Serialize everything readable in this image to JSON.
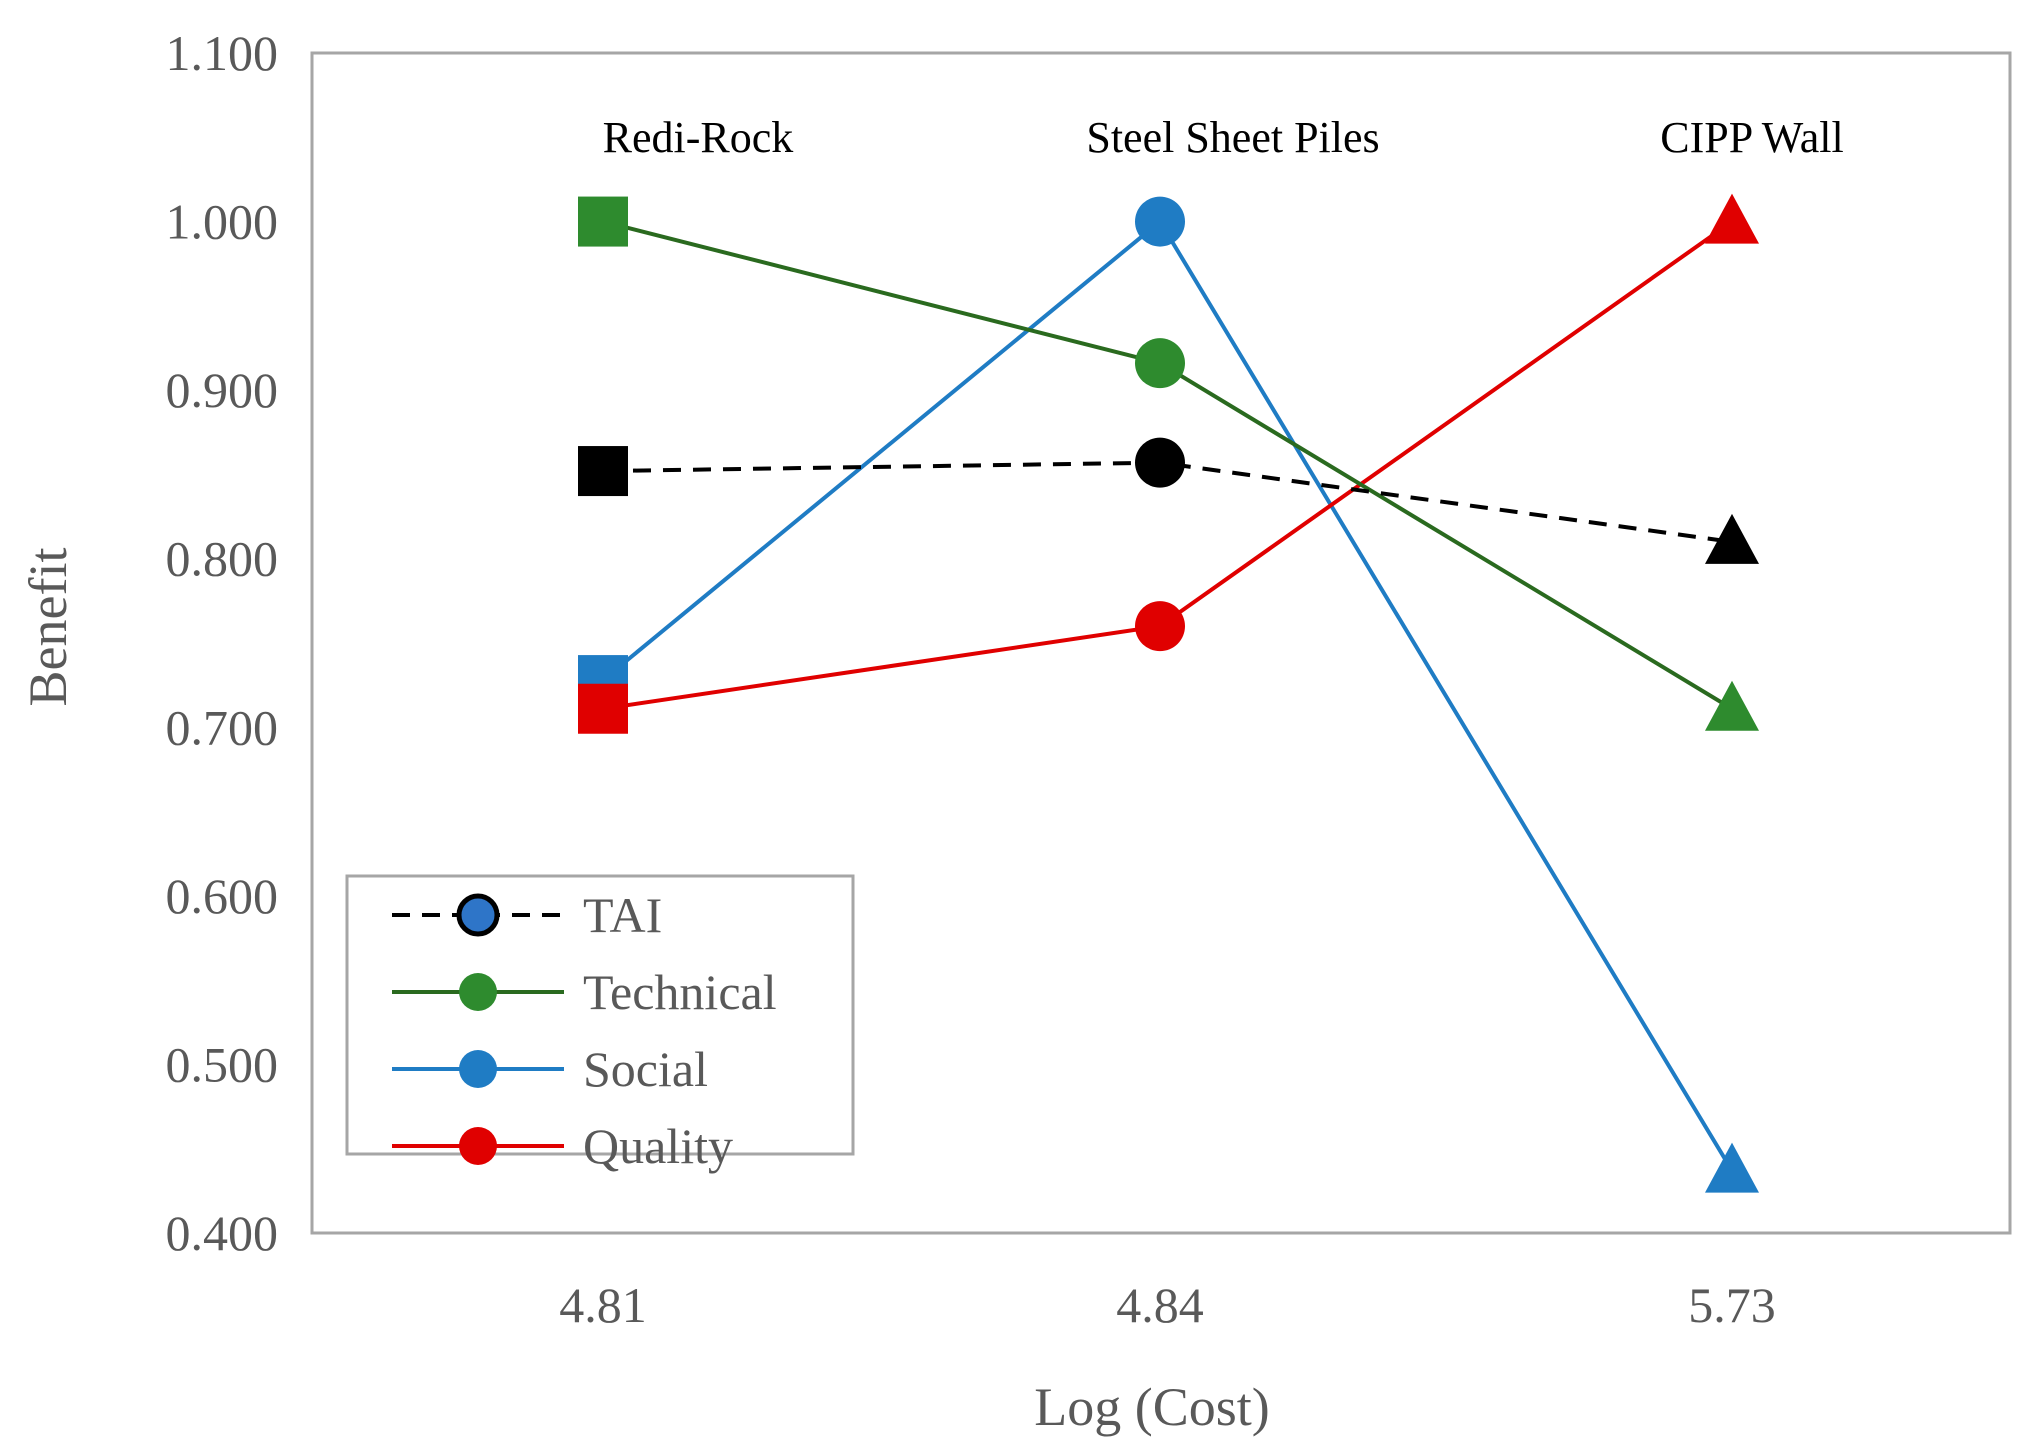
{
  "chart_data": {
    "type": "line",
    "title": "",
    "xlabel": "Log (Cost)",
    "ylabel": "Benefit",
    "categories": [
      "4.81",
      "4.84",
      "5.73"
    ],
    "point_labels": [
      "Redi-Rock",
      "Steel Sheet Piles",
      "CIPP Wall"
    ],
    "point_markers": [
      "square",
      "circle",
      "triangle"
    ],
    "ylim": [
      0.4,
      1.1
    ],
    "yticks": [
      "0.400",
      "0.500",
      "0.600",
      "0.700",
      "0.800",
      "0.900",
      "1.000",
      "1.100"
    ],
    "grid": false,
    "legend_position": "bottom-left",
    "series": [
      {
        "name": "TAI",
        "values": [
          0.852,
          0.857,
          0.81
        ],
        "color": "#000000",
        "dashed": true,
        "legend_marker_color": "#2e75c8"
      },
      {
        "name": "Technical",
        "values": [
          1.0,
          0.916,
          0.711
        ],
        "color": "#2e8b2e",
        "line_color": "#2a6a1f",
        "dashed": false
      },
      {
        "name": "Social",
        "values": [
          0.728,
          1.0,
          0.437
        ],
        "color": "#1f7cc4",
        "dashed": false
      },
      {
        "name": "Quality",
        "values": [
          0.711,
          0.76,
          1.0
        ],
        "color": "#e00000",
        "dashed": false
      }
    ]
  }
}
